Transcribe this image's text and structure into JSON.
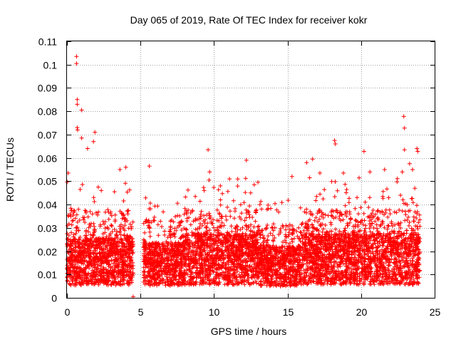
{
  "chart_data": {
    "type": "scatter",
    "title": "Day 065 of 2019, Rate Of TEC Index for receiver kokr",
    "xlabel": "GPS time / hours",
    "ylabel": "ROTI / TECUs",
    "xlim": [
      0,
      25
    ],
    "ylim": [
      0,
      0.11
    ],
    "xticks": [
      0,
      5,
      10,
      15,
      20,
      25
    ],
    "xtick_labels": [
      "0",
      "5",
      "10",
      "15",
      "20",
      "25"
    ],
    "yticks": [
      0,
      0.01,
      0.02,
      0.03,
      0.04,
      0.05,
      0.06,
      0.07,
      0.08,
      0.09,
      0.1,
      0.11
    ],
    "ytick_labels": [
      "0",
      "0.01",
      "0.02",
      "0.03",
      "0.04",
      "0.05",
      "0.06",
      "0.07",
      "0.08",
      "0.09",
      "0.1",
      "0.11"
    ],
    "grid": true,
    "marker": "+",
    "color": "#ff0000",
    "data_gap_hours": [
      4.5,
      5.2
    ],
    "notable_points": [
      {
        "x": 0.65,
        "y": 0.1035
      },
      {
        "x": 0.65,
        "y": 0.1005
      },
      {
        "x": 0.7,
        "y": 0.085
      },
      {
        "x": 0.7,
        "y": 0.083
      },
      {
        "x": 1.0,
        "y": 0.0805
      },
      {
        "x": 0.7,
        "y": 0.073
      },
      {
        "x": 0.72,
        "y": 0.072
      },
      {
        "x": 1.9,
        "y": 0.071
      },
      {
        "x": 1.0,
        "y": 0.0685
      },
      {
        "x": 1.8,
        "y": 0.067
      },
      {
        "x": 1.4,
        "y": 0.064
      },
      {
        "x": 9.6,
        "y": 0.0635
      },
      {
        "x": 18.2,
        "y": 0.0675
      },
      {
        "x": 18.25,
        "y": 0.066
      },
      {
        "x": 20.2,
        "y": 0.0628
      },
      {
        "x": 22.9,
        "y": 0.0778
      },
      {
        "x": 22.95,
        "y": 0.0728
      },
      {
        "x": 22.95,
        "y": 0.0635
      },
      {
        "x": 23.8,
        "y": 0.064
      },
      {
        "x": 23.85,
        "y": 0.0628
      },
      {
        "x": 12.2,
        "y": 0.059
      },
      {
        "x": 5.6,
        "y": 0.0565
      },
      {
        "x": 16.3,
        "y": 0.058
      },
      {
        "x": 21.6,
        "y": 0.055
      },
      {
        "x": 23.3,
        "y": 0.0575
      },
      {
        "x": 9.7,
        "y": 0.054
      },
      {
        "x": 0.08,
        "y": 0.0535
      },
      {
        "x": 3.6,
        "y": 0.055
      },
      {
        "x": 4.0,
        "y": 0.056
      },
      {
        "x": 16.7,
        "y": 0.0595
      },
      {
        "x": 17.2,
        "y": 0.0535
      },
      {
        "x": 18.8,
        "y": 0.0535
      },
      {
        "x": 20.6,
        "y": 0.054
      },
      {
        "x": 23.5,
        "y": 0.055
      },
      {
        "x": 11.05,
        "y": 0.051
      },
      {
        "x": 15.3,
        "y": 0.052
      },
      {
        "x": 22.8,
        "y": 0.054
      },
      {
        "x": 4.5,
        "y": 0.0005
      }
    ],
    "series": [
      {
        "name": "ROTI",
        "segments": [
          {
            "x_start": 0.0,
            "x_end": 4.5,
            "base": 0.015,
            "spread": 0.012,
            "upper": 0.045
          },
          {
            "x_start": 5.2,
            "x_end": 8.0,
            "base": 0.014,
            "spread": 0.011,
            "upper": 0.04
          },
          {
            "x_start": 8.0,
            "x_end": 13.0,
            "base": 0.016,
            "spread": 0.013,
            "upper": 0.045
          },
          {
            "x_start": 13.0,
            "x_end": 16.0,
            "base": 0.013,
            "spread": 0.01,
            "upper": 0.038
          },
          {
            "x_start": 16.0,
            "x_end": 24.0,
            "base": 0.016,
            "spread": 0.013,
            "upper": 0.045
          }
        ]
      }
    ]
  }
}
